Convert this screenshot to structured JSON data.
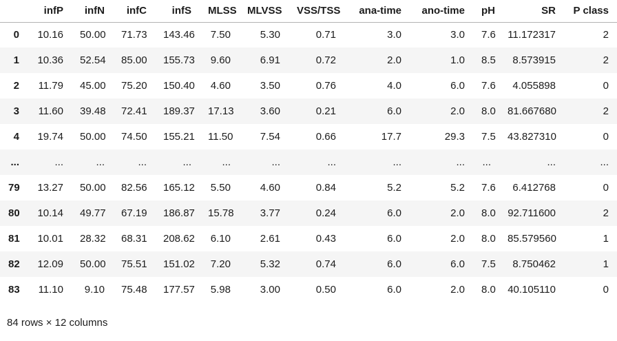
{
  "table": {
    "index_header": "",
    "columns": [
      "infP",
      "infN",
      "infC",
      "infS",
      "MLSS",
      "MLVSS",
      "VSS/TSS",
      "ana-time",
      "ano-time",
      "pH",
      "SR",
      "P class"
    ],
    "rows": [
      {
        "index": "0",
        "cells": [
          "10.16",
          "50.00",
          "71.73",
          "143.46",
          "7.50",
          "5.30",
          "0.71",
          "3.0",
          "3.0",
          "7.6",
          "11.172317",
          "2"
        ]
      },
      {
        "index": "1",
        "cells": [
          "10.36",
          "52.54",
          "85.00",
          "155.73",
          "9.60",
          "6.91",
          "0.72",
          "2.0",
          "1.0",
          "8.5",
          "8.573915",
          "2"
        ]
      },
      {
        "index": "2",
        "cells": [
          "11.79",
          "45.00",
          "75.20",
          "150.40",
          "4.60",
          "3.50",
          "0.76",
          "4.0",
          "6.0",
          "7.6",
          "4.055898",
          "0"
        ]
      },
      {
        "index": "3",
        "cells": [
          "11.60",
          "39.48",
          "72.41",
          "189.37",
          "17.13",
          "3.60",
          "0.21",
          "6.0",
          "2.0",
          "8.0",
          "81.667680",
          "2"
        ]
      },
      {
        "index": "4",
        "cells": [
          "19.74",
          "50.00",
          "74.50",
          "155.21",
          "11.50",
          "7.54",
          "0.66",
          "17.7",
          "29.3",
          "7.5",
          "43.827310",
          "0"
        ]
      },
      {
        "index": "...",
        "cells": [
          "...",
          "...",
          "...",
          "...",
          "...",
          "...",
          "...",
          "...",
          "...",
          "...",
          "...",
          "..."
        ]
      },
      {
        "index": "79",
        "cells": [
          "13.27",
          "50.00",
          "82.56",
          "165.12",
          "5.50",
          "4.60",
          "0.84",
          "5.2",
          "5.2",
          "7.6",
          "6.412768",
          "0"
        ]
      },
      {
        "index": "80",
        "cells": [
          "10.14",
          "49.77",
          "67.19",
          "186.87",
          "15.78",
          "3.77",
          "0.24",
          "6.0",
          "2.0",
          "8.0",
          "92.711600",
          "2"
        ]
      },
      {
        "index": "81",
        "cells": [
          "10.01",
          "28.32",
          "68.31",
          "208.62",
          "6.10",
          "2.61",
          "0.43",
          "6.0",
          "2.0",
          "8.0",
          "85.579560",
          "1"
        ]
      },
      {
        "index": "82",
        "cells": [
          "12.09",
          "50.00",
          "75.51",
          "151.02",
          "7.20",
          "5.32",
          "0.74",
          "6.0",
          "6.0",
          "7.5",
          "8.750462",
          "1"
        ]
      },
      {
        "index": "83",
        "cells": [
          "11.10",
          "9.10",
          "75.48",
          "177.57",
          "5.98",
          "3.00",
          "0.50",
          "6.0",
          "2.0",
          "8.0",
          "40.105110",
          "0"
        ]
      }
    ],
    "footer": "84 rows × 12 columns"
  },
  "colors": {
    "stripe": "#f5f5f5",
    "header_border": "#b3b3b3",
    "text": "#1c1c1c",
    "background": "#ffffff"
  }
}
